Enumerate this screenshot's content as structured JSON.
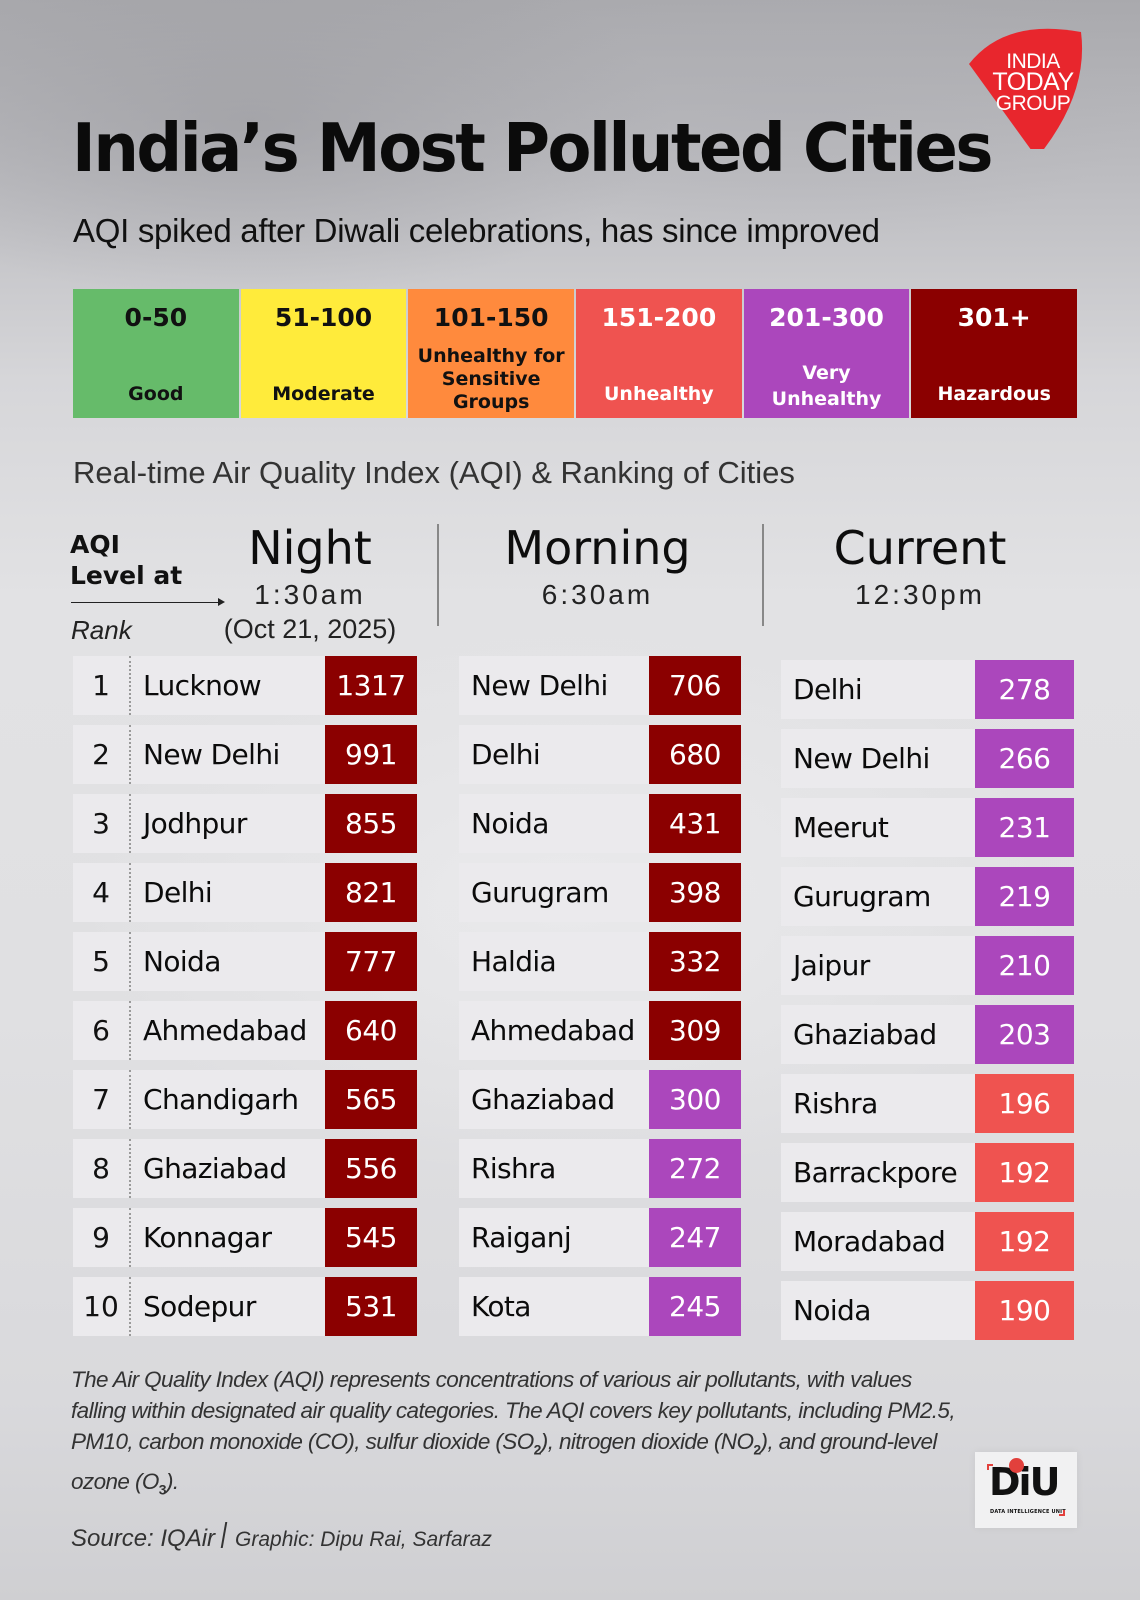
{
  "brand": {
    "logo_lines": [
      "INDIA",
      "TODAY",
      "GROUP"
    ],
    "logo_color": "#e8262d"
  },
  "header": {
    "title": "India’s Most Polluted Cities",
    "subtitle": "AQI spiked after Diwali celebrations, has since improved"
  },
  "legend": [
    {
      "range": "0-50",
      "label": "Good",
      "bg": "#66bb6a",
      "fg": "#111111"
    },
    {
      "range": "51-100",
      "label": "Moderate",
      "bg": "#ffeb3b",
      "fg": "#111111"
    },
    {
      "range": "101-150",
      "label": "Unhealthy for Sensitive Groups",
      "bg": "#ff8a3d",
      "fg": "#111111"
    },
    {
      "range": "151-200",
      "label": "Unhealthy",
      "bg": "#ef5350",
      "fg": "#ffffff"
    },
    {
      "range": "201-300",
      "label": "Very Unhealthy",
      "bg": "#ab47bc",
      "fg": "#ffffff"
    },
    {
      "range": "301+",
      "label": "Hazardous",
      "bg": "#8b0000",
      "fg": "#ffffff"
    }
  ],
  "section_label": "Real-time Air Quality Index (AQI) & Ranking of Cities",
  "axis": {
    "level_label_line1": "AQI",
    "level_label_line2": "Level at",
    "rank_label": "Rank"
  },
  "columns": [
    {
      "name": "Night",
      "time": "1:30am",
      "date": "(Oct 21, 2025)"
    },
    {
      "name": "Morning",
      "time": "6:30am",
      "date": ""
    },
    {
      "name": "Current",
      "time": "12:30pm",
      "date": ""
    }
  ],
  "chart_data": {
    "type": "table",
    "title": "India’s Most Polluted Cities",
    "subtitle": "AQI spiked after Diwali celebrations, has since improved",
    "ranks": [
      1,
      2,
      3,
      4,
      5,
      6,
      7,
      8,
      9,
      10
    ],
    "series": [
      {
        "name": "Night 1:30am (Oct 21, 2025)",
        "cities": [
          "Lucknow",
          "New Delhi",
          "Jodhpur",
          "Delhi",
          "Noida",
          "Ahmedabad",
          "Chandigarh",
          "Ghaziabad",
          "Konnagar",
          "Sodepur"
        ],
        "values": [
          1317,
          991,
          855,
          821,
          777,
          640,
          565,
          556,
          545,
          531
        ],
        "categories": [
          "Hazardous",
          "Hazardous",
          "Hazardous",
          "Hazardous",
          "Hazardous",
          "Hazardous",
          "Hazardous",
          "Hazardous",
          "Hazardous",
          "Hazardous"
        ]
      },
      {
        "name": "Morning 6:30am",
        "cities": [
          "New Delhi",
          "Delhi",
          "Noida",
          "Gurugram",
          "Haldia",
          "Ahmedabad",
          "Ghaziabad",
          "Rishra",
          "Raiganj",
          "Kota"
        ],
        "values": [
          706,
          680,
          431,
          398,
          332,
          309,
          300,
          272,
          247,
          245
        ],
        "categories": [
          "Hazardous",
          "Hazardous",
          "Hazardous",
          "Hazardous",
          "Hazardous",
          "Hazardous",
          "Very Unhealthy",
          "Very Unhealthy",
          "Very Unhealthy",
          "Very Unhealthy"
        ]
      },
      {
        "name": "Current 12:30pm",
        "cities": [
          "Delhi",
          "New Delhi",
          "Meerut",
          "Gurugram",
          "Jaipur",
          "Ghaziabad",
          "Rishra",
          "Barrackpore",
          "Moradabad",
          "Noida"
        ],
        "values": [
          278,
          266,
          231,
          219,
          210,
          203,
          196,
          192,
          192,
          190
        ],
        "categories": [
          "Very Unhealthy",
          "Very Unhealthy",
          "Very Unhealthy",
          "Very Unhealthy",
          "Very Unhealthy",
          "Very Unhealthy",
          "Unhealthy",
          "Unhealthy",
          "Unhealthy",
          "Unhealthy"
        ]
      }
    ],
    "category_colors": {
      "Good": "#66bb6a",
      "Moderate": "#ffeb3b",
      "Unhealthy for Sensitive Groups": "#ff8a3d",
      "Unhealthy": "#ef5350",
      "Very Unhealthy": "#ab47bc",
      "Hazardous": "#8b0000"
    }
  },
  "footnote": {
    "part1": "The Air Quality Index (AQI) represents concentrations of various air pollutants, with values falling within designated air quality categories. The AQI covers key pollutants, including PM2.5, PM10, carbon monoxide (CO), sulfur dioxide (SO",
    "sub1": "2",
    "part2": "), nitrogen dioxide (NO",
    "sub2": "2",
    "part3": "), and ground-level ozone (O",
    "sub3": "3",
    "part4": ")."
  },
  "credits": {
    "source": "Source: IQAir",
    "graphic": "Graphic: Dipu Rai, Sarfaraz"
  },
  "diu": {
    "letters": "DiU",
    "tagline": "DATA INTELLIGENCE UNIT"
  }
}
